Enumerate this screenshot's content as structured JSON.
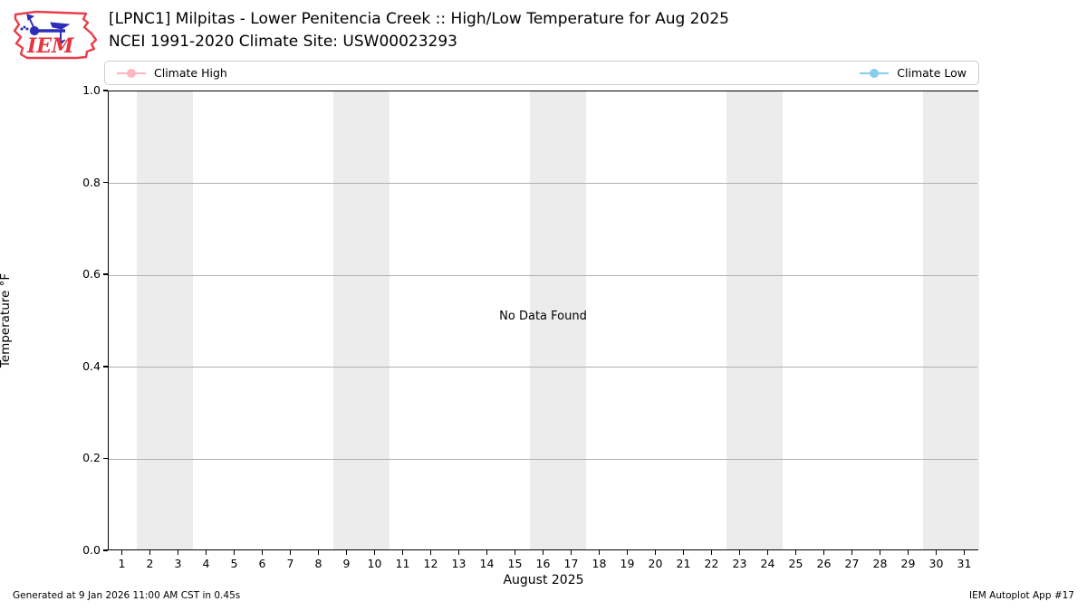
{
  "header": {
    "logo_text": "IEM",
    "title": "[LPNC1] Milpitas - Lower Penitencia Creek :: High/Low Temperature for Aug 2025",
    "subtitle": "NCEI 1991-2020 Climate Site: USW00023293"
  },
  "legend": {
    "items": [
      {
        "label": "Climate High",
        "color": "#ffb6c1"
      },
      {
        "label": "Climate Low",
        "color": "#87ceeb"
      }
    ]
  },
  "chart_data": {
    "type": "line",
    "title": "[LPNC1] Milpitas - Lower Penitencia Creek :: High/Low Temperature for Aug 2025",
    "subtitle": "NCEI 1991-2020 Climate Site: USW00023293",
    "xlabel": "August 2025",
    "ylabel": "Temperature °F",
    "no_data_text": "No Data Found",
    "xlim": [
      0.5,
      31.5
    ],
    "ylim": [
      0.0,
      1.0
    ],
    "xticks": [
      1,
      2,
      3,
      4,
      5,
      6,
      7,
      8,
      9,
      10,
      11,
      12,
      13,
      14,
      15,
      16,
      17,
      18,
      19,
      20,
      21,
      22,
      23,
      24,
      25,
      26,
      27,
      28,
      29,
      30,
      31
    ],
    "yticks": [
      0.0,
      0.2,
      0.4,
      0.6,
      0.8,
      1.0
    ],
    "ytick_labels": [
      "0.0",
      "0.2",
      "0.4",
      "0.6",
      "0.8",
      "1.0"
    ],
    "grid": "horizontal gridlines only",
    "grid_color": "#b0b0b0",
    "weekend_bands_x": [
      [
        1.5,
        3.5
      ],
      [
        8.5,
        10.5
      ],
      [
        15.5,
        17.5
      ],
      [
        22.5,
        24.5
      ],
      [
        29.5,
        31.5
      ]
    ],
    "band_color": "#ececec",
    "legend_position": "top, expanded full plot width",
    "series": [
      {
        "name": "Climate High",
        "color": "#ffb6c1",
        "x": [],
        "values": []
      },
      {
        "name": "Climate Low",
        "color": "#87ceeb",
        "x": [],
        "values": []
      }
    ]
  },
  "footer": {
    "left": "Generated at 9 Jan 2026 11:00 AM CST in 0.45s",
    "right": "IEM Autoplot App #17"
  }
}
